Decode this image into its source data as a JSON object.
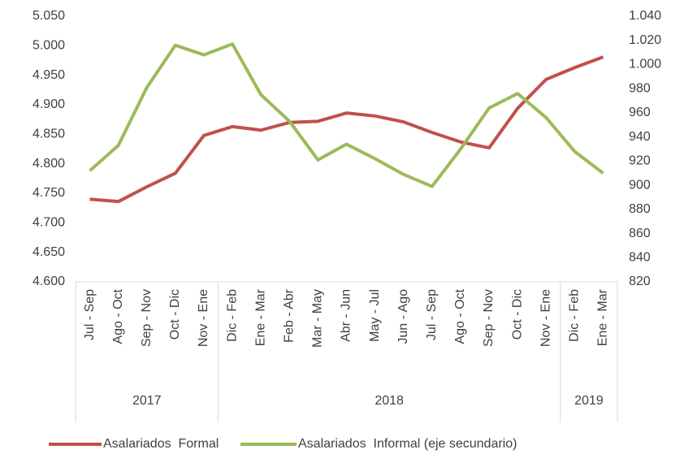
{
  "chart_data": {
    "type": "line",
    "categories": [
      "Jul - Sep",
      "Ago - Oct",
      "Sep - Nov",
      "Oct - Dic",
      "Nov - Ene",
      "Dic - Feb",
      "Ene - Mar",
      "Feb - Abr",
      "Mar - May",
      "Abr - Jun",
      "May - Jul",
      "Jun - Ago",
      "Jul - Sep",
      "Ago - Oct",
      "Sep - Nov",
      "Oct - Dic",
      "Nov - Ene",
      "Dic - Feb",
      "Ene - Mar"
    ],
    "year_groups": [
      {
        "name": "2017",
        "count": 5
      },
      {
        "name": "2018",
        "count": 12
      },
      {
        "name": "2019",
        "count": 2
      }
    ],
    "series": [
      {
        "name": "Asalariados  Formal",
        "color": "#c0504d",
        "values": [
          4740,
          4736,
          4761,
          4784,
          4848,
          4863,
          4857,
          4870,
          4872,
          4886,
          4881,
          4871,
          4853,
          4837,
          4827,
          4894,
          4943,
          4963,
          4981
        ]
      },
      {
        "name": "Asalariados  Informal (eje secundario)",
        "color": "#9bbb59",
        "axis": "y2",
        "values": [
          912,
          933,
          981,
          1016,
          1008,
          1017,
          975,
          953,
          921,
          934,
          922,
          909,
          899,
          930,
          964,
          976,
          956,
          928,
          910
        ]
      }
    ],
    "ylim": [
      4600,
      5050
    ],
    "yticks": [
      {
        "value": 4600,
        "label": "4.600"
      },
      {
        "value": 4650,
        "label": "4.650"
      },
      {
        "value": 4700,
        "label": "4.700"
      },
      {
        "value": 4750,
        "label": "4.750"
      },
      {
        "value": 4800,
        "label": "4.800"
      },
      {
        "value": 4850,
        "label": "4.850"
      },
      {
        "value": 4900,
        "label": "4.900"
      },
      {
        "value": 4950,
        "label": "4.950"
      },
      {
        "value": 5000,
        "label": "5.000"
      },
      {
        "value": 5050,
        "label": "5.050"
      }
    ],
    "y2lim": [
      820,
      1040
    ],
    "y2ticks": [
      820,
      840,
      860,
      880,
      900,
      920,
      940,
      960,
      980,
      {
        "value": 1000,
        "label": "1.000"
      },
      {
        "value": 1020,
        "label": "1.020"
      },
      {
        "value": 1040,
        "label": "1.040"
      }
    ],
    "grid": false,
    "legend": "bottom"
  }
}
